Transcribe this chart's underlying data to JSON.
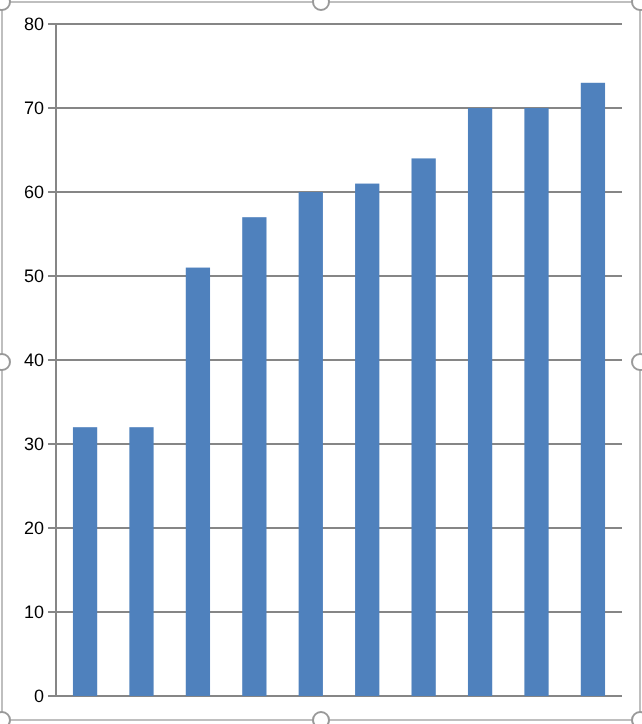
{
  "chart_data": {
    "type": "bar",
    "categories": [
      null,
      null,
      null,
      null,
      null,
      null,
      null,
      null,
      null,
      null
    ],
    "values": [
      32,
      32,
      51,
      57,
      60,
      61,
      64,
      70,
      70,
      73
    ],
    "color": "#4f81bd",
    "ylim": [
      0,
      80
    ],
    "yticks": [
      0,
      10,
      20,
      30,
      40,
      50,
      60,
      70,
      80
    ],
    "grid": "y"
  }
}
